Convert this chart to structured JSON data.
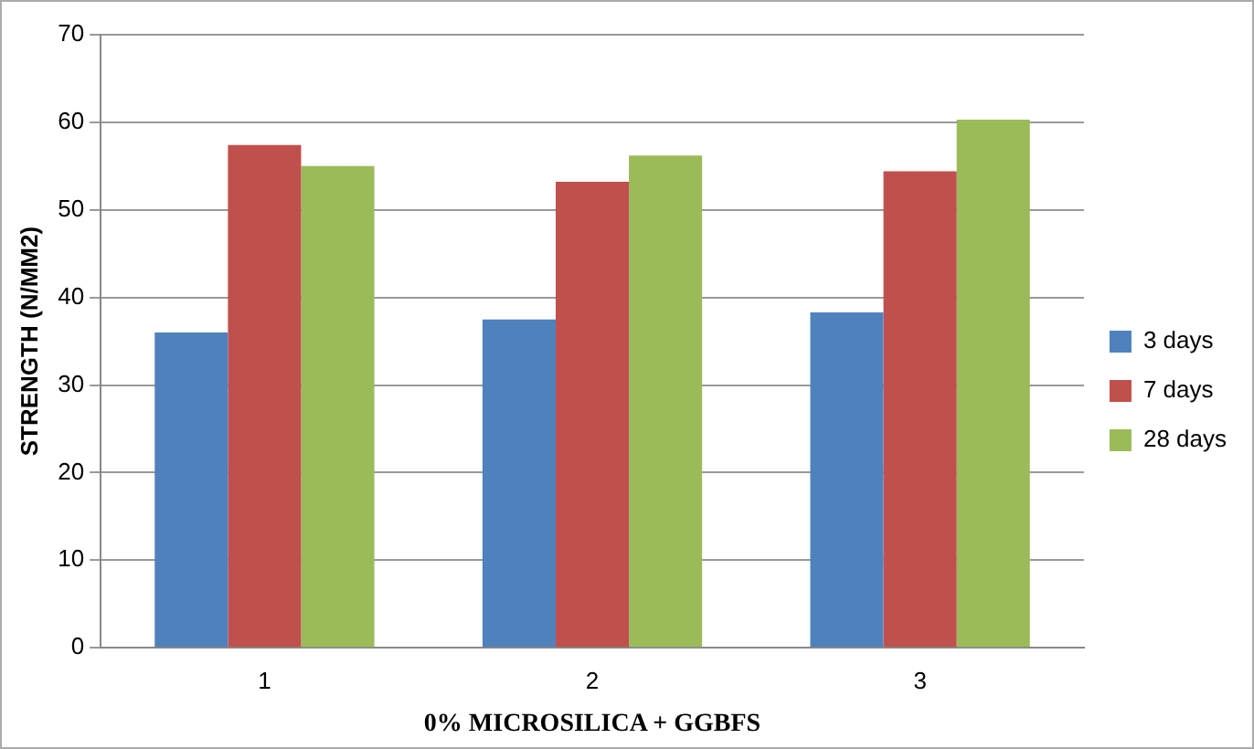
{
  "chart_data": {
    "type": "bar",
    "xlabel": "0% MICROSILICA + GGBFS",
    "ylabel": "STRENGTH (N/MM2)",
    "categories": [
      "1",
      "2",
      "3"
    ],
    "series": [
      {
        "name": "3 days",
        "color": "#4f81bd",
        "values": [
          36.0,
          37.5,
          38.3
        ]
      },
      {
        "name": "7 days",
        "color": "#c0504d",
        "values": [
          57.4,
          53.2,
          54.4
        ]
      },
      {
        "name": "28 days",
        "color": "#9bbb59",
        "values": [
          55.0,
          56.2,
          60.3
        ]
      }
    ],
    "ylim": [
      0,
      70
    ],
    "yticks": [
      0,
      10,
      20,
      30,
      40,
      50,
      60,
      70
    ],
    "grid": "y",
    "legend": "right"
  }
}
